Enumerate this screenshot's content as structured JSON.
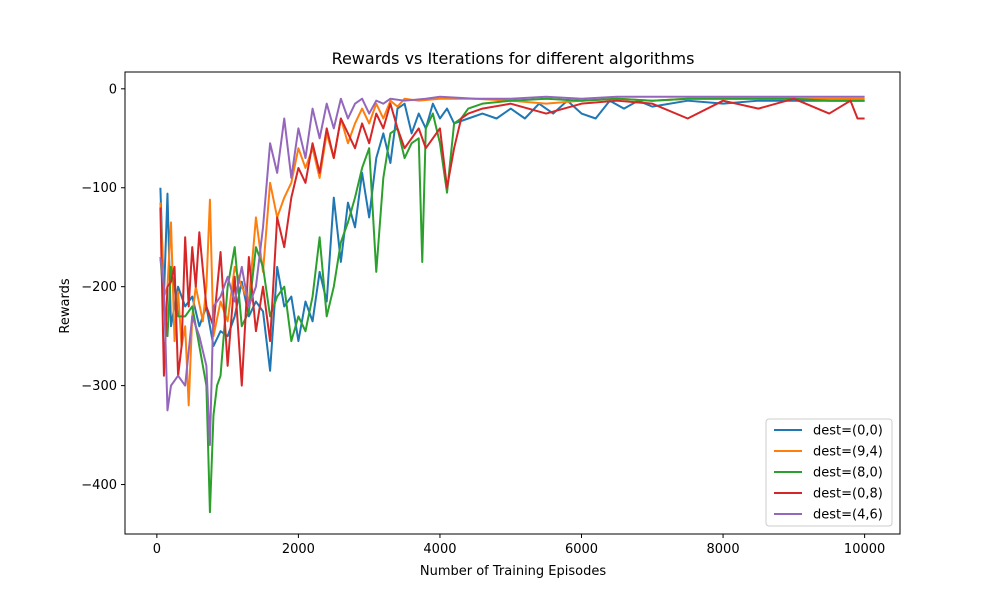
{
  "chart_data": {
    "type": "line",
    "title": "Rewards vs Iterations for different algorithms",
    "xlabel": "Number of Training Episodes",
    "ylabel": "Rewards",
    "xlim": [
      -450,
      10500
    ],
    "ylim": [
      -450,
      17
    ],
    "xticks": [
      0,
      2000,
      4000,
      6000,
      8000,
      10000
    ],
    "yticks": [
      0,
      -100,
      -200,
      -300,
      -400
    ],
    "grid": false,
    "legend_position": "lower-right",
    "series": [
      {
        "name": "dest=(0,0)",
        "color": "#1f77b4",
        "points": [
          [
            50,
            -100
          ],
          [
            100,
            -210
          ],
          [
            150,
            -106
          ],
          [
            200,
            -240
          ],
          [
            300,
            -200
          ],
          [
            400,
            -220
          ],
          [
            500,
            -210
          ],
          [
            600,
            -240
          ],
          [
            700,
            -220
          ],
          [
            800,
            -260
          ],
          [
            900,
            -245
          ],
          [
            1000,
            -250
          ],
          [
            1100,
            -230
          ],
          [
            1200,
            -195
          ],
          [
            1300,
            -230
          ],
          [
            1400,
            -215
          ],
          [
            1500,
            -225
          ],
          [
            1600,
            -285
          ],
          [
            1700,
            -180
          ],
          [
            1800,
            -220
          ],
          [
            1900,
            -210
          ],
          [
            2000,
            -255
          ],
          [
            2100,
            -215
          ],
          [
            2200,
            -235
          ],
          [
            2300,
            -185
          ],
          [
            2400,
            -215
          ],
          [
            2500,
            -110
          ],
          [
            2600,
            -175
          ],
          [
            2700,
            -115
          ],
          [
            2800,
            -140
          ],
          [
            2900,
            -85
          ],
          [
            3000,
            -130
          ],
          [
            3100,
            -70
          ],
          [
            3200,
            -45
          ],
          [
            3300,
            -75
          ],
          [
            3400,
            -20
          ],
          [
            3500,
            -15
          ],
          [
            3600,
            -45
          ],
          [
            3700,
            -25
          ],
          [
            3800,
            -40
          ],
          [
            3900,
            -15
          ],
          [
            4000,
            -30
          ],
          [
            4100,
            -20
          ],
          [
            4200,
            -35
          ],
          [
            4400,
            -30
          ],
          [
            4600,
            -25
          ],
          [
            4800,
            -30
          ],
          [
            5000,
            -20
          ],
          [
            5200,
            -30
          ],
          [
            5400,
            -15
          ],
          [
            5600,
            -25
          ],
          [
            5800,
            -12
          ],
          [
            6000,
            -25
          ],
          [
            6200,
            -30
          ],
          [
            6400,
            -12
          ],
          [
            6600,
            -20
          ],
          [
            6800,
            -12
          ],
          [
            7000,
            -18
          ],
          [
            7500,
            -12
          ],
          [
            8000,
            -15
          ],
          [
            8500,
            -12
          ],
          [
            9000,
            -12
          ],
          [
            9500,
            -12
          ],
          [
            10000,
            -12
          ]
        ]
      },
      {
        "name": "dest=(9,4)",
        "color": "#ff7f0e",
        "points": [
          [
            50,
            -115
          ],
          [
            100,
            -210
          ],
          [
            150,
            -200
          ],
          [
            200,
            -135
          ],
          [
            250,
            -255
          ],
          [
            300,
            -205
          ],
          [
            350,
            -260
          ],
          [
            400,
            -240
          ],
          [
            450,
            -320
          ],
          [
            500,
            -230
          ],
          [
            550,
            -200
          ],
          [
            650,
            -235
          ],
          [
            700,
            -200
          ],
          [
            750,
            -112
          ],
          [
            800,
            -250
          ],
          [
            900,
            -215
          ],
          [
            1000,
            -235
          ],
          [
            1100,
            -180
          ],
          [
            1200,
            -200
          ],
          [
            1300,
            -215
          ],
          [
            1400,
            -130
          ],
          [
            1500,
            -185
          ],
          [
            1600,
            -95
          ],
          [
            1700,
            -130
          ],
          [
            1800,
            -110
          ],
          [
            1900,
            -95
          ],
          [
            2000,
            -60
          ],
          [
            2100,
            -80
          ],
          [
            2200,
            -60
          ],
          [
            2300,
            -90
          ],
          [
            2400,
            -45
          ],
          [
            2500,
            -70
          ],
          [
            2600,
            -30
          ],
          [
            2700,
            -55
          ],
          [
            2800,
            -35
          ],
          [
            2900,
            -20
          ],
          [
            3000,
            -35
          ],
          [
            3100,
            -15
          ],
          [
            3200,
            -30
          ],
          [
            3300,
            -12
          ],
          [
            3400,
            -18
          ],
          [
            3500,
            -10
          ],
          [
            3700,
            -12
          ],
          [
            4000,
            -10
          ],
          [
            4500,
            -10
          ],
          [
            5000,
            -12
          ],
          [
            5500,
            -15
          ],
          [
            6000,
            -12
          ],
          [
            6500,
            -10
          ],
          [
            7000,
            -12
          ],
          [
            7500,
            -10
          ],
          [
            8000,
            -10
          ],
          [
            8500,
            -10
          ],
          [
            9000,
            -10
          ],
          [
            9500,
            -10
          ],
          [
            10000,
            -10
          ]
        ]
      },
      {
        "name": "dest=(8,0)",
        "color": "#2ca02c",
        "points": [
          [
            50,
            -170
          ],
          [
            100,
            -215
          ],
          [
            150,
            -250
          ],
          [
            200,
            -180
          ],
          [
            250,
            -200
          ],
          [
            300,
            -230
          ],
          [
            400,
            -230
          ],
          [
            500,
            -220
          ],
          [
            600,
            -260
          ],
          [
            700,
            -300
          ],
          [
            750,
            -428
          ],
          [
            800,
            -330
          ],
          [
            850,
            -300
          ],
          [
            900,
            -290
          ],
          [
            1000,
            -200
          ],
          [
            1100,
            -160
          ],
          [
            1200,
            -240
          ],
          [
            1300,
            -225
          ],
          [
            1400,
            -160
          ],
          [
            1500,
            -180
          ],
          [
            1600,
            -230
          ],
          [
            1700,
            -210
          ],
          [
            1800,
            -200
          ],
          [
            1900,
            -255
          ],
          [
            2000,
            -230
          ],
          [
            2100,
            -245
          ],
          [
            2200,
            -210
          ],
          [
            2300,
            -150
          ],
          [
            2400,
            -230
          ],
          [
            2500,
            -200
          ],
          [
            2600,
            -155
          ],
          [
            2700,
            -135
          ],
          [
            2800,
            -110
          ],
          [
            2900,
            -80
          ],
          [
            3000,
            -60
          ],
          [
            3100,
            -185
          ],
          [
            3200,
            -90
          ],
          [
            3300,
            -45
          ],
          [
            3400,
            -40
          ],
          [
            3500,
            -70
          ],
          [
            3600,
            -55
          ],
          [
            3700,
            -50
          ],
          [
            3750,
            -175
          ],
          [
            3800,
            -40
          ],
          [
            3900,
            -25
          ],
          [
            4000,
            -55
          ],
          [
            4100,
            -105
          ],
          [
            4200,
            -35
          ],
          [
            4300,
            -30
          ],
          [
            4400,
            -20
          ],
          [
            4600,
            -15
          ],
          [
            5000,
            -12
          ],
          [
            5500,
            -10
          ],
          [
            6000,
            -12
          ],
          [
            6500,
            -10
          ],
          [
            7000,
            -12
          ],
          [
            7500,
            -10
          ],
          [
            8000,
            -10
          ],
          [
            8500,
            -10
          ],
          [
            9000,
            -10
          ],
          [
            9500,
            -12
          ],
          [
            10000,
            -12
          ]
        ]
      },
      {
        "name": "dest=(0,8)",
        "color": "#d62728",
        "points": [
          [
            50,
            -120
          ],
          [
            100,
            -290
          ],
          [
            150,
            -200
          ],
          [
            200,
            -195
          ],
          [
            250,
            -180
          ],
          [
            300,
            -290
          ],
          [
            350,
            -260
          ],
          [
            400,
            -150
          ],
          [
            450,
            -220
          ],
          [
            500,
            -160
          ],
          [
            550,
            -200
          ],
          [
            600,
            -145
          ],
          [
            700,
            -220
          ],
          [
            800,
            -240
          ],
          [
            900,
            -165
          ],
          [
            1000,
            -280
          ],
          [
            1100,
            -190
          ],
          [
            1200,
            -300
          ],
          [
            1300,
            -170
          ],
          [
            1400,
            -245
          ],
          [
            1500,
            -200
          ],
          [
            1600,
            -255
          ],
          [
            1700,
            -130
          ],
          [
            1800,
            -160
          ],
          [
            1900,
            -110
          ],
          [
            2000,
            -80
          ],
          [
            2100,
            -95
          ],
          [
            2200,
            -55
          ],
          [
            2300,
            -85
          ],
          [
            2400,
            -40
          ],
          [
            2500,
            -70
          ],
          [
            2600,
            -30
          ],
          [
            2700,
            -45
          ],
          [
            2800,
            -60
          ],
          [
            2900,
            -35
          ],
          [
            3000,
            -55
          ],
          [
            3100,
            -25
          ],
          [
            3200,
            -40
          ],
          [
            3300,
            -15
          ],
          [
            3400,
            -40
          ],
          [
            3500,
            -60
          ],
          [
            3600,
            -50
          ],
          [
            3700,
            -40
          ],
          [
            3800,
            -60
          ],
          [
            3900,
            -50
          ],
          [
            4000,
            -40
          ],
          [
            4100,
            -100
          ],
          [
            4200,
            -60
          ],
          [
            4300,
            -30
          ],
          [
            4400,
            -25
          ],
          [
            4600,
            -20
          ],
          [
            5000,
            -15
          ],
          [
            5500,
            -25
          ],
          [
            6000,
            -15
          ],
          [
            6500,
            -12
          ],
          [
            7000,
            -15
          ],
          [
            7500,
            -30
          ],
          [
            8000,
            -12
          ],
          [
            8500,
            -20
          ],
          [
            9000,
            -10
          ],
          [
            9500,
            -25
          ],
          [
            9800,
            -12
          ],
          [
            9900,
            -30
          ],
          [
            10000,
            -30
          ]
        ]
      },
      {
        "name": "dest=(4,6)",
        "color": "#9467bd",
        "points": [
          [
            50,
            -170
          ],
          [
            100,
            -200
          ],
          [
            150,
            -325
          ],
          [
            200,
            -300
          ],
          [
            300,
            -290
          ],
          [
            400,
            -300
          ],
          [
            500,
            -230
          ],
          [
            600,
            -250
          ],
          [
            700,
            -280
          ],
          [
            750,
            -360
          ],
          [
            800,
            -220
          ],
          [
            900,
            -210
          ],
          [
            1000,
            -190
          ],
          [
            1100,
            -215
          ],
          [
            1200,
            -180
          ],
          [
            1300,
            -220
          ],
          [
            1400,
            -200
          ],
          [
            1500,
            -140
          ],
          [
            1600,
            -55
          ],
          [
            1700,
            -85
          ],
          [
            1800,
            -30
          ],
          [
            1900,
            -90
          ],
          [
            2000,
            -40
          ],
          [
            2100,
            -70
          ],
          [
            2200,
            -20
          ],
          [
            2300,
            -50
          ],
          [
            2400,
            -15
          ],
          [
            2500,
            -40
          ],
          [
            2600,
            -10
          ],
          [
            2700,
            -30
          ],
          [
            2800,
            -15
          ],
          [
            2900,
            -10
          ],
          [
            3000,
            -25
          ],
          [
            3100,
            -12
          ],
          [
            3200,
            -15
          ],
          [
            3300,
            -10
          ],
          [
            3500,
            -12
          ],
          [
            3800,
            -10
          ],
          [
            4000,
            -8
          ],
          [
            4500,
            -10
          ],
          [
            5000,
            -10
          ],
          [
            5500,
            -8
          ],
          [
            6000,
            -10
          ],
          [
            6500,
            -8
          ],
          [
            7000,
            -8
          ],
          [
            7500,
            -8
          ],
          [
            8000,
            -8
          ],
          [
            8500,
            -8
          ],
          [
            9000,
            -8
          ],
          [
            9500,
            -8
          ],
          [
            10000,
            -8
          ]
        ]
      }
    ]
  }
}
